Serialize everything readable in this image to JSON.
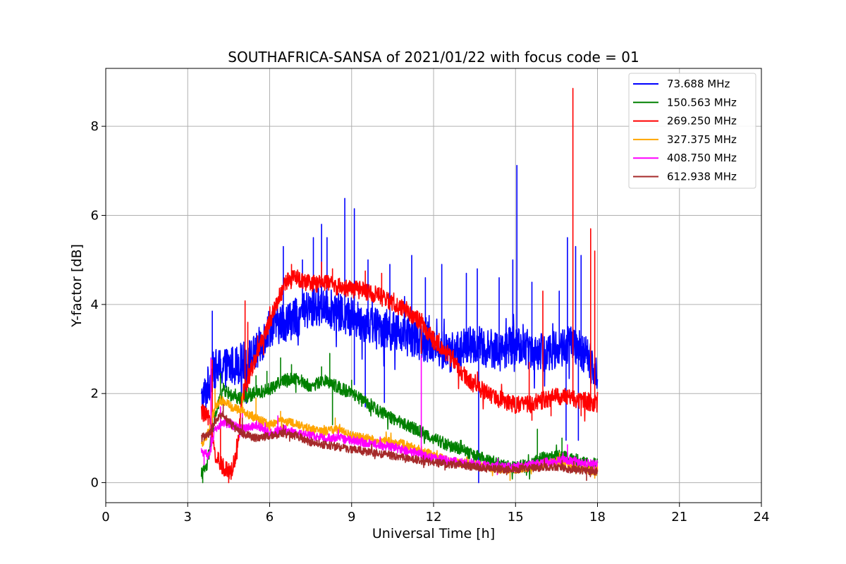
{
  "chart_data": {
    "type": "line",
    "title": "SOUTHAFRICA-SANSA of 2021/01/22 with focus code = 01",
    "xlabel": "Universal Time [h]",
    "ylabel": "Y-factor [dB]",
    "xlim": [
      0,
      24
    ],
    "ylim": [
      -0.45,
      9.3
    ],
    "xticks": [
      0,
      3,
      6,
      9,
      12,
      15,
      18,
      21,
      24
    ],
    "yticks": [
      0,
      2,
      4,
      6,
      8
    ],
    "grid": true,
    "legend_position": "top-right",
    "series": [
      {
        "name": "73.688 MHz",
        "legend_label": "  73.688 MHz",
        "color": "#0000ff",
        "x": [
          3.5,
          3.7,
          3.9,
          4.0,
          4.5,
          5.0,
          5.5,
          6.0,
          6.5,
          7.0,
          7.5,
          8.0,
          8.5,
          9.0,
          9.5,
          10.0,
          10.5,
          11.0,
          11.5,
          12.0,
          12.5,
          13.0,
          13.5,
          14.0,
          14.5,
          15.0,
          15.5,
          16.0,
          16.5,
          17.0,
          17.5,
          18.0
        ],
        "y": [
          1.8,
          2.1,
          2.45,
          2.55,
          2.6,
          2.7,
          2.9,
          3.5,
          3.6,
          3.7,
          3.9,
          4.0,
          3.8,
          3.7,
          3.6,
          3.5,
          3.4,
          3.3,
          3.2,
          3.1,
          2.9,
          3.0,
          3.1,
          3.0,
          3.0,
          3.1,
          3.0,
          2.9,
          3.0,
          3.1,
          2.9,
          2.5
        ],
        "spikes": [
          [
            3.9,
            3.85
          ],
          [
            4.3,
            2.8
          ],
          [
            5.1,
            3.0
          ],
          [
            6.5,
            5.3
          ],
          [
            7.2,
            5.0
          ],
          [
            7.6,
            5.5
          ],
          [
            7.9,
            5.8
          ],
          [
            8.1,
            5.5
          ],
          [
            8.75,
            6.38
          ],
          [
            9.1,
            6.15
          ],
          [
            9.6,
            5.0
          ],
          [
            10.4,
            4.9
          ],
          [
            11.2,
            5.1
          ],
          [
            11.7,
            4.6
          ],
          [
            12.3,
            4.9
          ],
          [
            13.2,
            4.7
          ],
          [
            13.6,
            4.8
          ],
          [
            14.4,
            4.6
          ],
          [
            14.9,
            5.0
          ],
          [
            15.05,
            7.12
          ],
          [
            15.6,
            4.5
          ],
          [
            16.6,
            4.3
          ],
          [
            16.9,
            5.5
          ],
          [
            17.2,
            5.3
          ],
          [
            17.4,
            5.1
          ]
        ],
        "dips": [
          [
            9.1,
            2.2
          ],
          [
            9.5,
            1.7
          ],
          [
            10.2,
            1.8
          ],
          [
            13.65,
            0.0
          ],
          [
            16.85,
            0.95
          ],
          [
            17.3,
            0.95
          ]
        ]
      },
      {
        "name": "150.563 MHz",
        "legend_label": "150.563 MHz",
        "color": "#008000",
        "x": [
          3.5,
          3.7,
          4.0,
          4.3,
          4.7,
          5.0,
          5.5,
          6.0,
          6.5,
          7.0,
          7.5,
          8.0,
          8.5,
          9.0,
          9.5,
          10.0,
          10.5,
          11.0,
          11.5,
          12.0,
          12.5,
          13.0,
          13.5,
          14.0,
          14.5,
          15.0,
          15.5,
          16.0,
          16.5,
          17.0,
          17.5,
          18.0
        ],
        "y": [
          0.2,
          0.35,
          1.5,
          2.1,
          1.9,
          1.9,
          2.0,
          2.1,
          2.3,
          2.35,
          2.15,
          2.3,
          2.15,
          2.0,
          1.8,
          1.6,
          1.45,
          1.3,
          1.15,
          1.0,
          0.85,
          0.75,
          0.6,
          0.5,
          0.4,
          0.35,
          0.4,
          0.55,
          0.6,
          0.55,
          0.45,
          0.4
        ],
        "spikes": [
          [
            4.2,
            2.45
          ],
          [
            5.1,
            2.5
          ],
          [
            5.5,
            2.4
          ],
          [
            5.9,
            2.5
          ],
          [
            6.4,
            2.8
          ],
          [
            6.8,
            2.65
          ],
          [
            7.9,
            2.6
          ],
          [
            8.2,
            2.9
          ],
          [
            9.0,
            2.3
          ],
          [
            15.8,
            1.2
          ],
          [
            16.7,
            1.0
          ]
        ],
        "dips": [
          [
            3.55,
            0.0
          ],
          [
            8.3,
            1.3
          ]
        ]
      },
      {
        "name": "269.250 MHz",
        "legend_label": "269.250 MHz",
        "color": "#ff0000",
        "x": [
          3.5,
          3.8,
          4.0,
          4.2,
          4.6,
          4.8,
          5.0,
          5.3,
          5.6,
          6.0,
          6.3,
          6.6,
          7.0,
          7.5,
          8.0,
          8.5,
          9.0,
          9.5,
          10.0,
          10.5,
          11.0,
          11.5,
          12.0,
          12.5,
          13.0,
          13.5,
          14.0,
          14.5,
          15.0,
          15.5,
          16.0,
          16.5,
          17.0,
          17.5,
          18.0
        ],
        "y": [
          1.6,
          1.4,
          0.6,
          0.4,
          0.25,
          0.7,
          1.9,
          2.5,
          3.0,
          3.6,
          4.1,
          4.5,
          4.6,
          4.45,
          4.5,
          4.4,
          4.35,
          4.3,
          4.2,
          4.0,
          3.9,
          3.6,
          3.2,
          2.9,
          2.5,
          2.2,
          2.0,
          1.85,
          1.75,
          1.75,
          1.85,
          1.95,
          1.9,
          1.85,
          1.75
        ],
        "spikes": [
          [
            3.9,
            2.75
          ],
          [
            4.2,
            1.7
          ],
          [
            5.1,
            4.08
          ],
          [
            5.2,
            3.6
          ],
          [
            6.8,
            4.9
          ],
          [
            7.3,
            4.6
          ],
          [
            7.9,
            4.95
          ],
          [
            8.3,
            4.8
          ],
          [
            9.5,
            4.75
          ],
          [
            10.1,
            4.7
          ],
          [
            11.55,
            2.9
          ],
          [
            12.2,
            3.35
          ],
          [
            15.5,
            2.7
          ],
          [
            16.0,
            4.3
          ],
          [
            17.1,
            8.85
          ],
          [
            17.75,
            5.7
          ],
          [
            17.9,
            5.2
          ]
        ],
        "dips": [
          [
            4.5,
            0.0
          ],
          [
            15.6,
            1.4
          ],
          [
            16.3,
            1.5
          ],
          [
            17.4,
            1.5
          ]
        ]
      },
      {
        "name": "327.375 MHz",
        "legend_label": "327.375 MHz",
        "color": "#ffa500",
        "x": [
          3.5,
          3.8,
          4.0,
          4.3,
          4.6,
          5.0,
          5.5,
          6.0,
          6.5,
          7.0,
          7.5,
          8.0,
          8.5,
          9.0,
          9.5,
          10.0,
          10.5,
          11.0,
          11.5,
          12.0,
          12.5,
          13.0,
          13.5,
          14.0,
          14.5,
          15.0,
          15.5,
          16.0,
          16.5,
          17.0,
          17.5,
          18.0
        ],
        "y": [
          0.8,
          1.2,
          1.7,
          1.85,
          1.7,
          1.6,
          1.45,
          1.3,
          1.4,
          1.3,
          1.2,
          1.15,
          1.2,
          1.05,
          1.0,
          0.95,
          0.9,
          0.85,
          0.75,
          0.6,
          0.5,
          0.45,
          0.4,
          0.35,
          0.3,
          0.3,
          0.35,
          0.4,
          0.45,
          0.4,
          0.3,
          0.25
        ],
        "spikes": [
          [
            4.0,
            2.1
          ],
          [
            5.0,
            2.0
          ],
          [
            5.5,
            1.9
          ],
          [
            6.4,
            1.6
          ],
          [
            8.4,
            1.45
          ]
        ],
        "dips": [
          [
            14.8,
            0.05
          ],
          [
            17.9,
            0.1
          ]
        ]
      },
      {
        "name": "408.750 MHz",
        "legend_label": "408.750 MHz",
        "color": "#ff00ff",
        "x": [
          3.5,
          3.8,
          4.0,
          4.3,
          4.6,
          5.0,
          5.5,
          6.0,
          6.5,
          7.0,
          7.5,
          8.0,
          8.5,
          9.0,
          9.5,
          10.0,
          10.5,
          11.0,
          11.5,
          12.0,
          12.5,
          13.0,
          13.5,
          14.0,
          14.5,
          15.0,
          15.5,
          16.0,
          16.5,
          17.0,
          17.5,
          18.0
        ],
        "y": [
          0.7,
          0.6,
          1.2,
          1.35,
          1.3,
          1.2,
          1.3,
          1.1,
          1.2,
          1.1,
          1.05,
          1.0,
          1.0,
          0.95,
          0.9,
          0.85,
          0.8,
          0.7,
          0.65,
          0.55,
          0.5,
          0.45,
          0.4,
          0.38,
          0.35,
          0.35,
          0.4,
          0.45,
          0.5,
          0.5,
          0.45,
          0.4
        ],
        "spikes": [
          [
            3.85,
            2.8
          ],
          [
            4.2,
            1.7
          ],
          [
            5.0,
            1.55
          ],
          [
            6.3,
            1.5
          ],
          [
            11.55,
            2.85
          ],
          [
            16.9,
            0.85
          ]
        ],
        "dips": [
          [
            3.6,
            0.4
          ]
        ]
      },
      {
        "name": "612.938 MHz",
        "legend_label": "612.938 MHz",
        "color": "#a52a2a",
        "x": [
          3.5,
          3.8,
          4.0,
          4.3,
          4.6,
          5.0,
          5.5,
          6.0,
          6.5,
          7.0,
          7.5,
          8.0,
          8.5,
          9.0,
          9.5,
          10.0,
          10.5,
          11.0,
          11.5,
          12.0,
          12.5,
          13.0,
          13.5,
          14.0,
          14.5,
          15.0,
          15.5,
          16.0,
          16.5,
          17.0,
          17.5,
          18.0
        ],
        "y": [
          1.0,
          1.1,
          1.4,
          1.55,
          1.3,
          1.1,
          1.0,
          1.05,
          1.1,
          1.05,
          0.9,
          0.85,
          0.8,
          0.75,
          0.7,
          0.65,
          0.6,
          0.55,
          0.5,
          0.45,
          0.42,
          0.4,
          0.35,
          0.32,
          0.3,
          0.3,
          0.32,
          0.35,
          0.35,
          0.3,
          0.28,
          0.25
        ],
        "spikes": [
          [
            4.3,
            1.75
          ],
          [
            5.0,
            1.45
          ],
          [
            6.5,
            1.3
          ]
        ],
        "dips": [
          [
            17.6,
            0.05
          ]
        ]
      }
    ]
  }
}
